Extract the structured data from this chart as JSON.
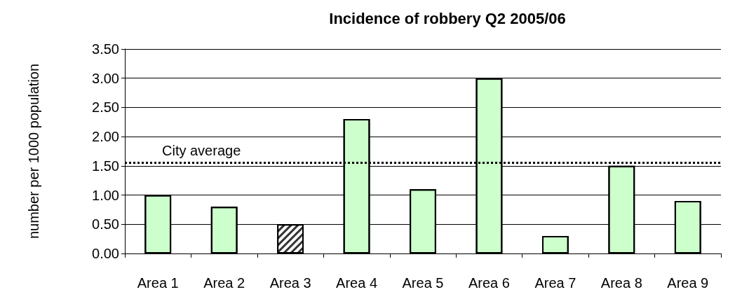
{
  "chart_data": {
    "type": "bar",
    "title": "Incidence of robbery Q2 2005/06",
    "ylabel": "number per 1000 population",
    "categories": [
      "Area 1",
      "Area 2",
      "Area 3",
      "Area 4",
      "Area 5",
      "Area 6",
      "Area 7",
      "Area 8",
      "Area 9"
    ],
    "values": [
      1.0,
      0.8,
      0.5,
      2.3,
      1.1,
      3.0,
      0.3,
      1.5,
      0.9
    ],
    "colors": [
      "#ccffcc",
      "#ccffcc",
      "#333333",
      "#ccffcc",
      "#ccffcc",
      "#ccffcc",
      "#ccffcc",
      "#ccffcc",
      "#ccffcc"
    ],
    "ylim": [
      0,
      3.5
    ],
    "yticks": [
      {
        "value": 0,
        "label": "0.00"
      },
      {
        "value": 0.5,
        "label": "0.50"
      },
      {
        "value": 1,
        "label": "1.00"
      },
      {
        "value": 1.5,
        "label": "1.50"
      },
      {
        "value": 2,
        "label": "2.00"
      },
      {
        "value": 2.5,
        "label": "2.50"
      },
      {
        "value": 3,
        "label": "3.00"
      },
      {
        "value": 3.5,
        "label": "3.50"
      }
    ],
    "grid": "y",
    "ref_lines": [
      {
        "axis": "y",
        "value": 1.55,
        "label": "City average",
        "color": "#000000",
        "line_style": "dotted"
      }
    ]
  }
}
